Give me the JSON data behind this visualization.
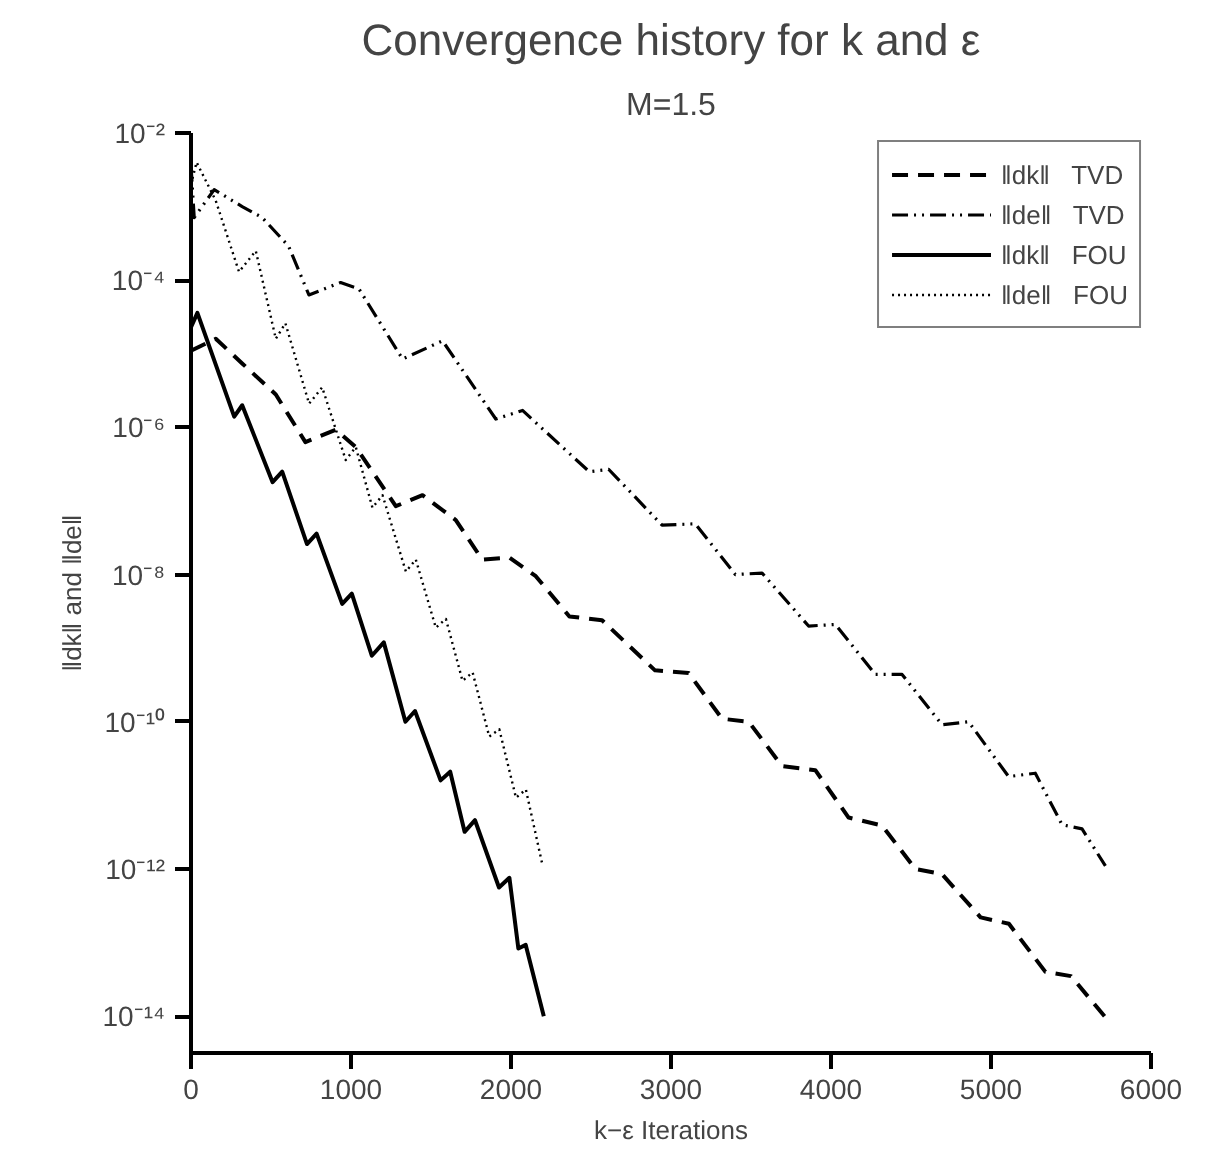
{
  "chart_data": {
    "type": "line",
    "title": "Convergence history for k and ε",
    "subtitle": "M=1.5",
    "xlabel": "k−ε Iterations",
    "ylabel": "‖dk‖ and ‖de‖",
    "log": "y",
    "grid": false,
    "legend": "top right",
    "xlim": [
      0,
      6000
    ],
    "xticks": [
      0,
      1000,
      2000,
      3000,
      4000,
      5000,
      6000
    ],
    "ylim": [
      3.16e-15,
      0.01
    ],
    "yticks": [
      {
        "value": 0.01,
        "label": "10⁻²"
      },
      {
        "value": 0.0001,
        "label": "10⁻⁴"
      },
      {
        "value": 1e-06,
        "label": "10⁻⁶"
      },
      {
        "value": 1e-08,
        "label": "10⁻⁸"
      },
      {
        "value": 1e-10,
        "label": "10⁻¹⁰"
      },
      {
        "value": 1e-12,
        "label": "10⁻¹²"
      },
      {
        "value": 1e-14,
        "label": "10⁻¹⁴"
      }
    ],
    "series": [
      {
        "name": "‖dk‖   TVD",
        "color": "#000000",
        "line_style": "dashed",
        "x": [
          0,
          155,
          320,
          530,
          715,
          905,
          1030,
          1280,
          1447,
          1655,
          1820,
          1990,
          2155,
          2365,
          2569,
          2900,
          3110,
          3319,
          3486,
          3694,
          3902,
          4110,
          4319,
          4527,
          4694,
          4935,
          5112,
          5340,
          5500,
          5740
        ],
        "values": [
          1.1e-05,
          1.6e-05,
          7.4e-06,
          2.8e-06,
          6.3e-07,
          9.3e-07,
          5.4e-07,
          8.5e-08,
          1.2e-07,
          5.5e-08,
          1.6e-08,
          1.7e-08,
          9.5e-09,
          2.7e-09,
          2.4e-09,
          5e-10,
          4.6e-10,
          1.1e-10,
          1e-10,
          2.5e-11,
          2.2e-11,
          5e-12,
          3.9e-12,
          1e-12,
          8.5e-13,
          2.2e-13,
          1.8e-13,
          4e-14,
          3.5e-14,
          8.3e-15
        ]
      },
      {
        "name": "‖de‖   TVD",
        "color": "#000000",
        "line_style": "dashdot",
        "x": [
          0,
          20,
          145,
          320,
          445,
          610,
          737,
          935,
          1050,
          1322,
          1572,
          1905,
          2072,
          2489,
          2610,
          2944,
          3152,
          3402,
          3569,
          3860,
          4027,
          4277,
          4444,
          4694,
          4860,
          5110,
          5277,
          5444,
          5569,
          5715
        ],
        "values": [
          0.0036,
          0.00071,
          0.0017,
          0.001,
          0.00071,
          0.00029,
          6.3e-05,
          9.3e-05,
          7.6e-05,
          8.5e-06,
          1.5e-05,
          1.3e-06,
          1.7e-06,
          2.5e-07,
          2.7e-07,
          4.7e-08,
          4.9e-08,
          1e-08,
          1.05e-08,
          2e-09,
          2.1e-09,
          4.4e-10,
          4.4e-10,
          9.1e-11,
          1e-10,
          1.8e-11,
          2e-11,
          4e-12,
          3.5e-12,
          1.1e-12
        ]
      },
      {
        "name": "‖dk‖   FOU",
        "color": "#000000",
        "line_style": "solid",
        "x": [
          0,
          40,
          270,
          320,
          510,
          570,
          725,
          785,
          945,
          1005,
          1130,
          1205,
          1340,
          1400,
          1560,
          1620,
          1710,
          1775,
          1925,
          1990,
          2046,
          2092,
          2205
        ],
        "values": [
          2.3e-05,
          3.6e-05,
          1.4e-06,
          2e-06,
          1.8e-07,
          2.5e-07,
          2.6e-08,
          3.6e-08,
          4e-09,
          5.5e-09,
          7.9e-10,
          1.2e-09,
          1e-10,
          1.4e-10,
          1.6e-11,
          2.1e-11,
          3.2e-12,
          4.6e-12,
          5.6e-13,
          7.6e-13,
          8.3e-14,
          9.3e-14,
          1e-14
        ]
      },
      {
        "name": "‖de‖   FOU",
        "color": "#000000",
        "line_style": "dotted",
        "x": [
          0,
          35,
          155,
          300,
          405,
          530,
          590,
          738,
          820,
          967,
          1030,
          1134,
          1197,
          1343,
          1405,
          1530,
          1593,
          1697,
          1760,
          1864,
          1927,
          2031,
          2093,
          2198
        ],
        "values": [
          0.002,
          0.004,
          0.0012,
          0.00013,
          0.00025,
          1.6e-05,
          2.6e-05,
          2.1e-06,
          3.5e-06,
          3.6e-07,
          5.4e-07,
          8.1e-08,
          1.2e-07,
          1.1e-08,
          1.6e-08,
          1.9e-09,
          2.5e-09,
          3.6e-10,
          4.7e-10,
          6.3e-11,
          7.9e-11,
          9.3e-12,
          1.2e-11,
          1.1e-12
        ]
      }
    ]
  }
}
